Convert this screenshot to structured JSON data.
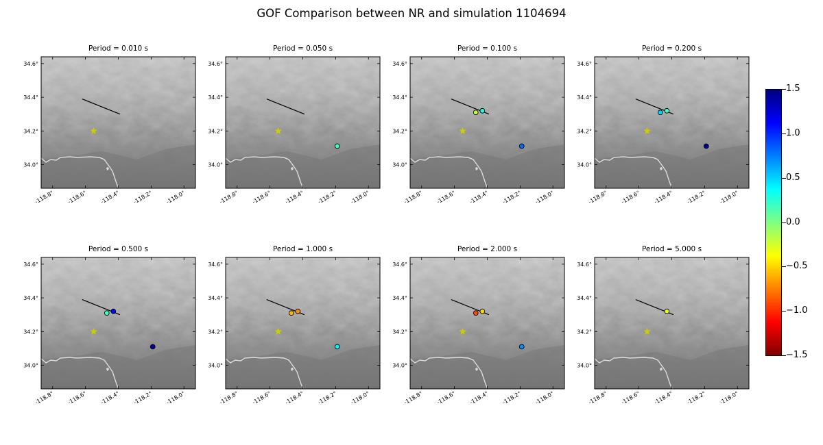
{
  "title": "GOF Comparison between NR and simulation 1104694",
  "chart_data": {
    "type": "scatter",
    "map": {
      "xlim": [
        -118.87,
        -117.93
      ],
      "ylim": [
        33.86,
        34.64
      ],
      "xticks": [
        -118.8,
        -118.6,
        -118.4,
        -118.2,
        -118.0
      ],
      "xtick_labels": [
        "-118.8°",
        "-118.6°",
        "-118.4°",
        "-118.2°",
        "-118.0°"
      ],
      "yticks": [
        34.0,
        34.2,
        34.4,
        34.6
      ],
      "ytick_labels": [
        "34.0°",
        "34.2°",
        "34.4°",
        "34.6°"
      ],
      "fault_trace": [
        [
          -118.62,
          34.39
        ],
        [
          -118.39,
          34.3
        ]
      ],
      "epicenter": {
        "lon": -118.55,
        "lat": 34.2,
        "color": "#cccc00"
      }
    },
    "colorbar": {
      "vmin": -1.5,
      "vmax": 1.5,
      "colormap": "jet_r",
      "ticks": [
        1.5,
        1.0,
        0.5,
        0.0,
        -0.5,
        -1.0,
        -1.5
      ],
      "tick_labels": [
        "1.5",
        "1.0",
        "0.5",
        "0.0",
        "−0.5",
        "−1.0",
        "−1.5"
      ]
    },
    "panels": [
      {
        "title": "Period = 0.010 s",
        "stations": []
      },
      {
        "title": "Period = 0.050 s",
        "stations": [
          {
            "lon": -118.19,
            "lat": 34.11,
            "value": 0.2
          }
        ]
      },
      {
        "title": "Period = 0.100 s",
        "stations": [
          {
            "lon": -118.47,
            "lat": 34.31,
            "value": -0.2
          },
          {
            "lon": -118.43,
            "lat": 34.32,
            "value": 0.3
          },
          {
            "lon": -118.19,
            "lat": 34.11,
            "value": 0.8
          }
        ]
      },
      {
        "title": "Period = 0.200 s",
        "stations": [
          {
            "lon": -118.47,
            "lat": 34.31,
            "value": 0.5
          },
          {
            "lon": -118.43,
            "lat": 34.32,
            "value": 0.2
          },
          {
            "lon": -118.19,
            "lat": 34.11,
            "value": 1.4
          }
        ]
      },
      {
        "title": "Period = 0.500 s",
        "stations": [
          {
            "lon": -118.47,
            "lat": 34.31,
            "value": 0.2
          },
          {
            "lon": -118.43,
            "lat": 34.32,
            "value": 1.1
          },
          {
            "lon": -118.19,
            "lat": 34.11,
            "value": 1.4
          }
        ]
      },
      {
        "title": "Period = 1.000 s",
        "stations": [
          {
            "lon": -118.47,
            "lat": 34.31,
            "value": -0.6
          },
          {
            "lon": -118.43,
            "lat": 34.32,
            "value": -0.7
          },
          {
            "lon": -118.19,
            "lat": 34.11,
            "value": 0.4
          }
        ]
      },
      {
        "title": "Period = 2.000 s",
        "stations": [
          {
            "lon": -118.47,
            "lat": 34.31,
            "value": -0.9
          },
          {
            "lon": -118.43,
            "lat": 34.32,
            "value": -0.5
          },
          {
            "lon": -118.19,
            "lat": 34.11,
            "value": 0.7
          }
        ]
      },
      {
        "title": "Period = 5.000 s",
        "stations": [
          {
            "lon": -118.43,
            "lat": 34.32,
            "value": -0.3
          }
        ]
      }
    ]
  }
}
